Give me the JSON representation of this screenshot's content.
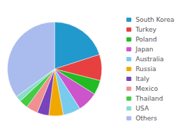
{
  "chart_data": {
    "type": "pie",
    "categories": [
      "South Korea",
      "Turkey",
      "Poland",
      "Japan",
      "Australia",
      "Russia",
      "Italy",
      "Mexico",
      "Thailand",
      "USA",
      "Others"
    ],
    "values": [
      20,
      9,
      5,
      7,
      6,
      5,
      4,
      4,
      3,
      2,
      35
    ],
    "colors": [
      "#2299cc",
      "#e84040",
      "#22bb22",
      "#cc55cc",
      "#77ccee",
      "#f0a800",
      "#7744bb",
      "#f09090",
      "#44cc44",
      "#88ddcc",
      "#aabbee"
    ],
    "legend": "right"
  }
}
